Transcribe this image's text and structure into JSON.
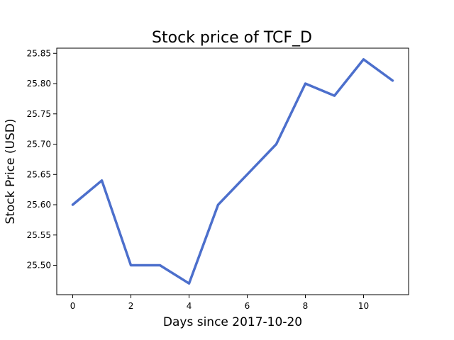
{
  "chart_data": {
    "type": "line",
    "title": "Stock price of TCF_D",
    "xlabel": "Days since 2017-10-20",
    "ylabel": "Stock Price (USD)",
    "x": [
      0,
      1,
      2,
      3,
      4,
      5,
      6,
      7,
      8,
      9,
      10,
      11
    ],
    "series": [
      {
        "values": [
          25.6,
          25.64,
          25.5,
          25.5,
          25.47,
          25.6,
          25.65,
          25.7,
          25.8,
          25.78,
          25.84,
          25.805
        ],
        "color": "#4c6fcc"
      }
    ],
    "xlim": [
      -0.55,
      11.55
    ],
    "ylim": [
      25.4515,
      25.8585
    ],
    "xticks": [
      0,
      2,
      4,
      6,
      8,
      10
    ],
    "yticks": [
      25.5,
      25.55,
      25.6,
      25.65,
      25.7,
      25.75,
      25.8,
      25.85
    ],
    "grid": false,
    "legend": "none"
  }
}
